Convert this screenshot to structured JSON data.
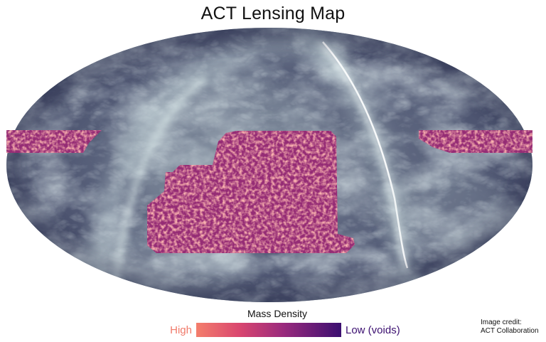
{
  "title": "ACT Lensing Map",
  "legend": {
    "title": "Mass Density",
    "high_label": "High",
    "low_label": "Low (voids)",
    "high_color": "#f07a6a",
    "low_color": "#3b0f70"
  },
  "credit": {
    "line1": "Image credit:",
    "line2": "ACT Collaboration"
  },
  "colors": {
    "dust_dark": "#2d3350",
    "dust_light": "#dff0f0",
    "density_mid": "#b5367a"
  }
}
